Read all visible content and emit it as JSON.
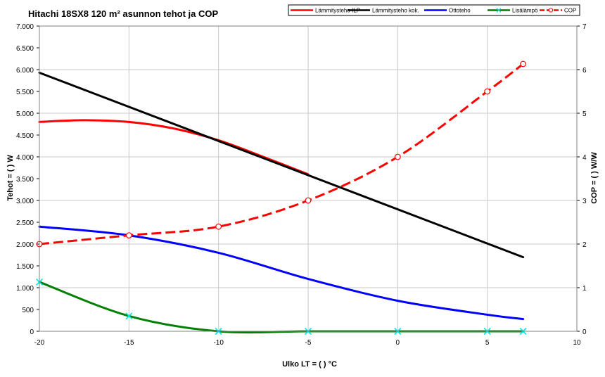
{
  "chart_data": {
    "type": "line",
    "title": "Hitachi 18SX8 120 m² asunnon tehot ja COP",
    "xlabel": "Ulko LT = ( ) °C",
    "ylabel": "Tehot = ( ) W",
    "y2label": "COP = ( ) W/W",
    "xlim": [
      -20,
      10
    ],
    "ylim": [
      0,
      7000
    ],
    "y2lim": [
      0,
      7
    ],
    "grid": true,
    "legend_position": "top-right",
    "x_ticks": [
      -20,
      -15,
      -10,
      -5,
      0,
      5,
      10
    ],
    "x_tick_labels": [
      "-20",
      "-15",
      "-10",
      "-5",
      "0",
      "5",
      "10"
    ],
    "y_ticks": [
      0,
      500,
      1000,
      1500,
      2000,
      2500,
      3000,
      3500,
      4000,
      4500,
      5000,
      5500,
      6000,
      6500,
      7000
    ],
    "y_tick_labels": [
      "0",
      "500",
      "1.000",
      "1.500",
      "2.000",
      "2.500",
      "3.000",
      "3.500",
      "4.000",
      "4.500",
      "5.000",
      "5.500",
      "6.000",
      "6.500",
      "7.000"
    ],
    "y2_ticks": [
      0,
      1,
      2,
      3,
      4,
      5,
      6,
      7
    ],
    "y2_tick_labels": [
      "0",
      "1",
      "2",
      "3",
      "4",
      "5",
      "6",
      "7"
    ],
    "series": [
      {
        "name": "Lämmitysteho ILP",
        "axis": "left",
        "color": "#ff0000",
        "style": "solid",
        "marker": "none",
        "x": [
          -20,
          -17.5,
          -15,
          -12.5,
          -10,
          -7.5,
          -5
        ],
        "values": [
          4800,
          4840,
          4800,
          4650,
          4380,
          4000,
          3600
        ]
      },
      {
        "name": "Lämmitysteho kok.",
        "axis": "left",
        "color": "#000000",
        "style": "solid",
        "marker": "none",
        "x": [
          -20,
          7
        ],
        "values": [
          5930,
          1700
        ]
      },
      {
        "name": "Ottoteho",
        "axis": "left",
        "color": "#0000ff",
        "style": "solid",
        "marker": "none",
        "x": [
          -20,
          -15,
          -10,
          -5,
          0,
          5,
          7
        ],
        "values": [
          2400,
          2200,
          1800,
          1200,
          700,
          380,
          280
        ]
      },
      {
        "name": "Lisälämpö",
        "axis": "left",
        "color": "#007f00",
        "style": "solid",
        "marker": "x",
        "marker_color": "#00e5e5",
        "x": [
          -20,
          -15,
          -10,
          -5,
          0,
          5,
          7
        ],
        "values": [
          1130,
          350,
          0,
          0,
          0,
          0,
          0
        ]
      },
      {
        "name": "COP",
        "axis": "right",
        "color": "#ff0000",
        "style": "dashed",
        "marker": "circle",
        "x": [
          -20,
          -15,
          -10,
          -5,
          0,
          5,
          7
        ],
        "values": [
          2.0,
          2.2,
          2.4,
          3.0,
          4.0,
          5.5,
          6.13
        ]
      }
    ]
  }
}
